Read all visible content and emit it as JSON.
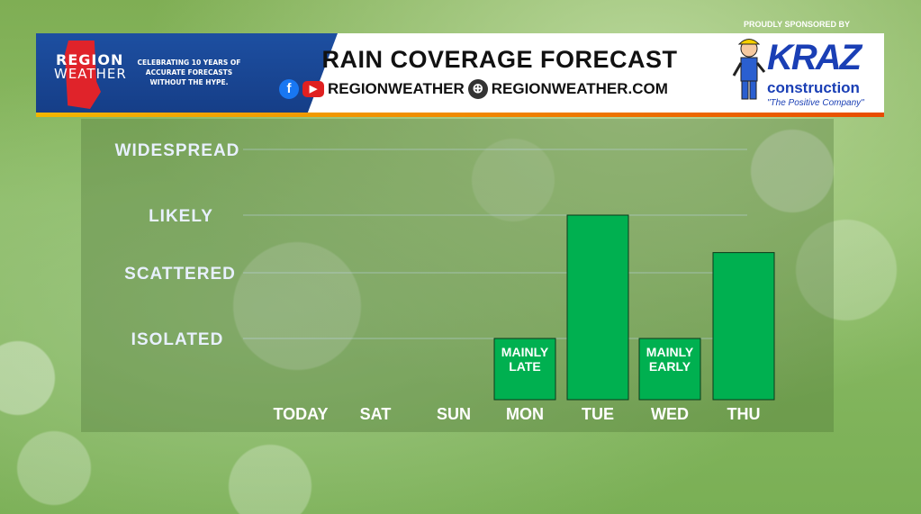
{
  "header": {
    "logo_region": "REGION",
    "logo_weather": "WEATHER",
    "tagline": "CELEBRATING 10 YEARS OF ACCURATE FORECASTS WITHOUT THE HYPE.",
    "title": "RAIN COVERAGE FORECAST",
    "social_handle": "REGIONWEATHER",
    "website": "REGIONWEATHER.COM",
    "icons": [
      "facebook-icon",
      "youtube-icon",
      "globe-icon"
    ]
  },
  "sponsor": {
    "label": "PROUDLY SPONSORED BY",
    "brand": "KRAZ",
    "brand_sub": "construction",
    "slogan": "\"The Positive Company\""
  },
  "colors": {
    "bar": "#00b050",
    "header_blue": "#1d4fa1",
    "accent_orange": "#f08a00",
    "label_text": "#e8f0ff"
  },
  "chart_data": {
    "type": "bar",
    "title": "RAIN COVERAGE FORECAST",
    "categories": [
      "TODAY",
      "SAT",
      "SUN",
      "MON",
      "TUE",
      "WED",
      "THU"
    ],
    "levels": [
      "ISOLATED",
      "SCATTERED",
      "LIKELY",
      "WIDESPREAD"
    ],
    "values": [
      0,
      0,
      0,
      1,
      3,
      1,
      2.35
    ],
    "bar_labels": [
      "",
      "",
      "",
      "MAINLY LATE",
      "",
      "MAINLY EARLY",
      ""
    ],
    "ylim": [
      0,
      4
    ],
    "grid": true
  }
}
